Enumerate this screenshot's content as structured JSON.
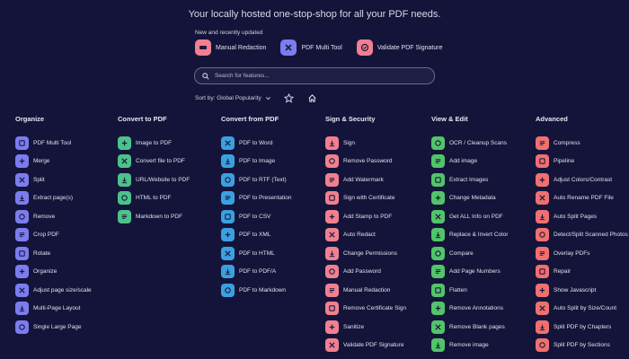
{
  "header": {
    "tagline": "Your locally hosted one-stop-shop for all your PDF needs.",
    "new_label": "New and recently updated"
  },
  "recent": [
    {
      "label": "Manual Redaction",
      "color": "#f08090",
      "icon": "redaction-icon"
    },
    {
      "label": "PDF Multi Tool",
      "color": "#7c7cf0",
      "icon": "multi-tool-icon"
    },
    {
      "label": "Validate PDF Signature",
      "color": "#f08090",
      "icon": "signature-check-icon"
    }
  ],
  "search": {
    "placeholder": "Search for features..."
  },
  "sort": {
    "label": "Sort by: Global Popularity"
  },
  "columns": [
    {
      "title": "Organize",
      "color": "#7c7cf0",
      "items": [
        "PDF Multi Tool",
        "Merge",
        "Split",
        "Extract page(s)",
        "Remove",
        "Crop PDF",
        "Rotate",
        "Organize",
        "Adjust page size/scale",
        "Multi-Page Layout",
        "Single Large Page"
      ]
    },
    {
      "title": "Convert to PDF",
      "color": "#4cc28a",
      "items": [
        "Image to PDF",
        "Convert file to PDF",
        "URL/Website to PDF",
        "HTML to PDF",
        "Markdown to PDF"
      ]
    },
    {
      "title": "Convert from PDF",
      "color": "#3ba0e0",
      "items": [
        "PDF to Word",
        "PDF to Image",
        "PDF to RTF (Text)",
        "PDF to Presentation",
        "PDF to CSV",
        "PDF to XML",
        "PDF to HTML",
        "PDF to PDF/A",
        "PDF to Markdown"
      ]
    },
    {
      "title": "Sign & Security",
      "color": "#f08090",
      "items": [
        "Sign",
        "Remove Password",
        "Add Watermark",
        "Sign with Certificate",
        "Add Stamp to PDF",
        "Auto Redact",
        "Change Permissions",
        "Add Password",
        "Manual Redaction",
        "Remove Certificate Sign",
        "Sanitize",
        "Validate PDF Signature"
      ]
    },
    {
      "title": "View & Edit",
      "color": "#52c46a",
      "items": [
        "OCR / Cleanup Scans",
        "Add image",
        "Extract Images",
        "Change Metadata",
        "Get ALL Info on PDF",
        "Replace & Invert Color",
        "Compare",
        "Add Page Numbers",
        "Flatten",
        "Remove Annotations",
        "Remove Blank pages",
        "Remove image"
      ]
    },
    {
      "title": "Advanced",
      "color": "#f07070",
      "items": [
        "Compress",
        "Pipeline",
        "Adjust Colors/Contrast",
        "Auto Rename PDF File",
        "Auto Split Pages",
        "Detect/Split Scanned Photos",
        "Overlay PDFs",
        "Repair",
        "Show Javascript",
        "Auto Split by Size/Count",
        "Split PDF by Chapters",
        "Split PDF by Sections"
      ]
    }
  ]
}
